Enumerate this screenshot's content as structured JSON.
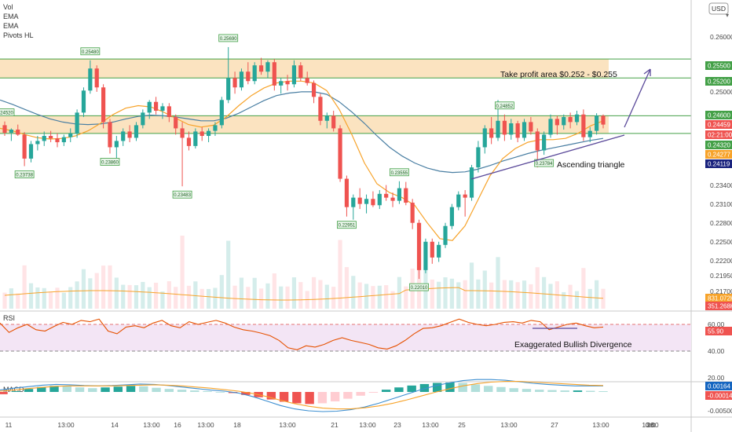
{
  "indicators_legend": [
    "Vol",
    "EMA",
    "EMA",
    "Pivots HL"
  ],
  "currency_button": "USD",
  "colors": {
    "up": "#26a69a",
    "down": "#ef5350",
    "ema_fast": "#f7a32a",
    "ema_slow": "#4a7fa3",
    "zone_fill": "#fbe3c0",
    "hline": "#43a047",
    "trend": "#5b4a9a",
    "rsi_line": "#e65100",
    "rsi_band": "#f3e5f5",
    "macd_line": "#3d8fd1",
    "signal_line": "#f7a32a"
  },
  "annotations": {
    "take_profit": "Take profit area $0.252 - $0.255",
    "triangle": "Ascending triangle",
    "divergence": "Exaggerated Bullish Divergence"
  },
  "price_axis": {
    "ticks": [
      "0.26000",
      "0.25000",
      "0.23400",
      "0.23100",
      "0.22800",
      "0.22500",
      "0.22200",
      "0.21950",
      "0.21700"
    ],
    "badges": [
      {
        "text": "0.25500",
        "kind": "green"
      },
      {
        "text": "0.25200",
        "kind": "green"
      },
      {
        "text": "0.24600",
        "kind": "green"
      },
      {
        "text": "0.24459",
        "kind": "red"
      },
      {
        "text": "02:21:00",
        "kind": "red"
      },
      {
        "text": "0.24320",
        "kind": "green"
      },
      {
        "text": "0.24277",
        "kind": "orange"
      },
      {
        "text": "0.24119",
        "kind": "blue"
      },
      {
        "text": "831.072K",
        "kind": "orange"
      },
      {
        "text": "351.268K",
        "kind": "red"
      }
    ]
  },
  "rsi_axis": {
    "label": "RSI",
    "ticks": [
      "60.00",
      "40.00",
      "20.00"
    ],
    "value": "55.90"
  },
  "macd_axis": {
    "label": "MACD",
    "ticks": [
      "-0.00500"
    ],
    "values": [
      "0.00164",
      "-0.00014"
    ]
  },
  "time_axis": [
    "11",
    "13:00",
    "14",
    "13:00",
    "16",
    "13:00",
    "18",
    "13:00",
    "21",
    "13:00",
    "23",
    "13:00",
    "25",
    "13:00",
    "27",
    "13:00",
    "28",
    "13:00",
    "Oct"
  ],
  "chart_data": {
    "type": "candlestick",
    "y_range": [
      0.2155,
      0.264
    ],
    "hlines": [
      0.255,
      0.252,
      0.246,
      0.2432
    ],
    "zones": [
      [
        0.252,
        0.255
      ],
      [
        0.2432,
        0.246
      ]
    ],
    "pivot_labels": [
      "0.24520",
      "0.23738",
      "0.25480",
      "0.23860",
      "0.23483",
      "0.25690",
      "0.22951",
      "0.23555",
      "0.22010",
      "0.24852",
      "0.23784"
    ],
    "candles": [
      [
        0.2445,
        0.2451,
        0.2428,
        0.2433
      ],
      [
        0.2433,
        0.244,
        0.242,
        0.2438
      ],
      [
        0.2438,
        0.2446,
        0.2428,
        0.243
      ],
      [
        0.243,
        0.2434,
        0.238,
        0.2392
      ],
      [
        0.2392,
        0.242,
        0.2386,
        0.2415
      ],
      [
        0.2415,
        0.2428,
        0.2405,
        0.242
      ],
      [
        0.242,
        0.2435,
        0.2412,
        0.2428
      ],
      [
        0.2428,
        0.2436,
        0.2418,
        0.2424
      ],
      [
        0.2424,
        0.2432,
        0.241,
        0.2418
      ],
      [
        0.2418,
        0.243,
        0.2412,
        0.2426
      ],
      [
        0.2426,
        0.244,
        0.2418,
        0.2432
      ],
      [
        0.2432,
        0.247,
        0.2425,
        0.2465
      ],
      [
        0.2465,
        0.2505,
        0.2458,
        0.25
      ],
      [
        0.25,
        0.2548,
        0.2495,
        0.2535
      ],
      [
        0.2535,
        0.254,
        0.2498,
        0.2505
      ],
      [
        0.2505,
        0.251,
        0.244,
        0.245
      ],
      [
        0.245,
        0.2455,
        0.24,
        0.241
      ],
      [
        0.241,
        0.2428,
        0.2386,
        0.242
      ],
      [
        0.242,
        0.244,
        0.2412,
        0.2435
      ],
      [
        0.2435,
        0.2445,
        0.2418,
        0.2425
      ],
      [
        0.2425,
        0.245,
        0.242,
        0.2445
      ],
      [
        0.2445,
        0.247,
        0.244,
        0.2465
      ],
      [
        0.2465,
        0.2485,
        0.2455,
        0.2482
      ],
      [
        0.2482,
        0.249,
        0.2462,
        0.2468
      ],
      [
        0.2468,
        0.248,
        0.2455,
        0.2475
      ],
      [
        0.2475,
        0.248,
        0.245,
        0.2458
      ],
      [
        0.2458,
        0.2462,
        0.243,
        0.244
      ],
      [
        0.244,
        0.245,
        0.2348,
        0.2425
      ],
      [
        0.2425,
        0.2435,
        0.2405,
        0.2412
      ],
      [
        0.2412,
        0.244,
        0.2408,
        0.2435
      ],
      [
        0.2435,
        0.2442,
        0.242,
        0.2428
      ],
      [
        0.2428,
        0.244,
        0.2418,
        0.2436
      ],
      [
        0.2436,
        0.245,
        0.2428,
        0.2445
      ],
      [
        0.2445,
        0.249,
        0.244,
        0.2485
      ],
      [
        0.2485,
        0.2569,
        0.248,
        0.252
      ],
      [
        0.252,
        0.253,
        0.2495,
        0.2505
      ],
      [
        0.2505,
        0.2535,
        0.25,
        0.253
      ],
      [
        0.253,
        0.2545,
        0.251,
        0.2515
      ],
      [
        0.2515,
        0.2545,
        0.251,
        0.254
      ],
      [
        0.254,
        0.2552,
        0.2525,
        0.253
      ],
      [
        0.253,
        0.2548,
        0.252,
        0.2545
      ],
      [
        0.2545,
        0.255,
        0.25,
        0.2508
      ],
      [
        0.2508,
        0.252,
        0.2495,
        0.2515
      ],
      [
        0.2515,
        0.2525,
        0.25,
        0.251
      ],
      [
        0.251,
        0.2548,
        0.2505,
        0.254
      ],
      [
        0.254,
        0.2545,
        0.2515,
        0.252
      ],
      [
        0.252,
        0.253,
        0.2508,
        0.2512
      ],
      [
        0.2512,
        0.2516,
        0.248,
        0.249
      ],
      [
        0.249,
        0.2495,
        0.2445,
        0.2452
      ],
      [
        0.2452,
        0.2465,
        0.244,
        0.246
      ],
      [
        0.246,
        0.2468,
        0.2435,
        0.244
      ],
      [
        0.244,
        0.2445,
        0.2355,
        0.236
      ],
      [
        0.236,
        0.2365,
        0.23,
        0.2315
      ],
      [
        0.2315,
        0.2335,
        0.2295,
        0.233
      ],
      [
        0.233,
        0.2345,
        0.2312,
        0.232
      ],
      [
        0.232,
        0.2335,
        0.2305,
        0.2328
      ],
      [
        0.2328,
        0.234,
        0.2315,
        0.2318
      ],
      [
        0.2318,
        0.2342,
        0.2312,
        0.2336
      ],
      [
        0.2336,
        0.235,
        0.2325,
        0.233
      ],
      [
        0.233,
        0.2338,
        0.2315,
        0.2325
      ],
      [
        0.2325,
        0.2356,
        0.232,
        0.2345
      ],
      [
        0.2345,
        0.2355,
        0.2318,
        0.2322
      ],
      [
        0.2322,
        0.2328,
        0.228,
        0.229
      ],
      [
        0.229,
        0.2295,
        0.2201,
        0.2215
      ],
      [
        0.2215,
        0.2265,
        0.221,
        0.226
      ],
      [
        0.226,
        0.2265,
        0.2225,
        0.2235
      ],
      [
        0.2235,
        0.226,
        0.2228,
        0.2255
      ],
      [
        0.2255,
        0.229,
        0.225,
        0.2285
      ],
      [
        0.2285,
        0.232,
        0.228,
        0.2315
      ],
      [
        0.2315,
        0.234,
        0.231,
        0.2335
      ],
      [
        0.2335,
        0.2342,
        0.23,
        0.233
      ],
      [
        0.233,
        0.2382,
        0.2325,
        0.2378
      ],
      [
        0.2378,
        0.242,
        0.237,
        0.241
      ],
      [
        0.241,
        0.2445,
        0.24,
        0.244
      ],
      [
        0.244,
        0.2458,
        0.2415,
        0.2425
      ],
      [
        0.2425,
        0.2485,
        0.242,
        0.2452
      ],
      [
        0.2452,
        0.2462,
        0.242,
        0.243
      ],
      [
        0.243,
        0.2455,
        0.2422,
        0.2448
      ],
      [
        0.2448,
        0.2452,
        0.2418,
        0.2425
      ],
      [
        0.2425,
        0.2455,
        0.242,
        0.245
      ],
      [
        0.245,
        0.2458,
        0.243,
        0.2435
      ],
      [
        0.2435,
        0.244,
        0.2378,
        0.2405
      ],
      [
        0.2405,
        0.2435,
        0.2398,
        0.243
      ],
      [
        0.243,
        0.2462,
        0.2425,
        0.2455
      ],
      [
        0.2455,
        0.246,
        0.243,
        0.2445
      ],
      [
        0.2445,
        0.2462,
        0.2438,
        0.2458
      ],
      [
        0.2458,
        0.2465,
        0.244,
        0.245
      ],
      [
        0.245,
        0.2468,
        0.2445,
        0.2462
      ],
      [
        0.2462,
        0.247,
        0.242,
        0.2426
      ],
      [
        0.2426,
        0.2442,
        0.2418,
        0.2436
      ],
      [
        0.2436,
        0.2464,
        0.243,
        0.246
      ],
      [
        0.246,
        0.2462,
        0.244,
        0.2446
      ]
    ],
    "ema_fast": [
      0.244,
      0.2436,
      0.243,
      0.2425,
      0.2423,
      0.2424,
      0.2428,
      0.2436,
      0.2448,
      0.2462,
      0.2472,
      0.2476,
      0.2474,
      0.2466,
      0.2456,
      0.2446,
      0.2442,
      0.2445,
      0.2458,
      0.2476,
      0.2492,
      0.2504,
      0.2512,
      0.2515,
      0.2515,
      0.2512,
      0.25,
      0.247,
      0.243,
      0.2385,
      0.2352,
      0.2338,
      0.233,
      0.2318,
      0.229,
      0.2265,
      0.2262,
      0.2285,
      0.2325,
      0.2365,
      0.2392,
      0.2408,
      0.2418,
      0.2422,
      0.2422,
      0.2424,
      0.2432,
      0.2444,
      0.2452
    ],
    "ema_slow": [
      0.2485,
      0.2478,
      0.247,
      0.2462,
      0.2455,
      0.245,
      0.2447,
      0.2446,
      0.2447,
      0.245,
      0.2455,
      0.2459,
      0.2461,
      0.246,
      0.2458,
      0.2455,
      0.2452,
      0.2452,
      0.2456,
      0.2464,
      0.2474,
      0.2484,
      0.2492,
      0.2496,
      0.2498,
      0.2498,
      0.2494,
      0.2482,
      0.2466,
      0.2448,
      0.2428,
      0.241,
      0.2396,
      0.2385,
      0.2377,
      0.2372,
      0.237,
      0.2371,
      0.2375,
      0.2381,
      0.2388,
      0.2394,
      0.24,
      0.2405,
      0.2409,
      0.2413,
      0.2417,
      0.2421,
      0.2424
    ],
    "trendlines": [
      [
        [
          0.2365,
          0.0
        ],
        [
          0.2412,
          1.0
        ]
      ]
    ],
    "projection": "up",
    "rsi": [
      62,
      48,
      55,
      60,
      52,
      50,
      57,
      63,
      60,
      66,
      64,
      68,
      50,
      46,
      56,
      58,
      55,
      62,
      66,
      58,
      55,
      64,
      60,
      63,
      66,
      62,
      56,
      52,
      50,
      47,
      43,
      36,
      25,
      22,
      28,
      26,
      30,
      36,
      40,
      36,
      33,
      30,
      25,
      23,
      28,
      36,
      46,
      54,
      55,
      58,
      63,
      68,
      63,
      60,
      58,
      60,
      63,
      64,
      62,
      66,
      64,
      52,
      56,
      60,
      62,
      58,
      55,
      56
    ],
    "rsi_levels": [
      70,
      30
    ],
    "macd_hist": [
      -0.0006,
      0.0002,
      0.0008,
      0.0013,
      0.0016,
      0.0015,
      0.0012,
      0.001,
      0.0012,
      0.0014,
      0.0016,
      0.0015,
      0.0011,
      0.0008,
      0.0006,
      0.0004,
      0.0002,
      0.0,
      -0.0003,
      -0.0008,
      -0.0014,
      -0.002,
      -0.0026,
      -0.003,
      -0.0032,
      -0.003,
      -0.0025,
      -0.0018,
      -0.001,
      -0.0002,
      0.0006,
      0.0012,
      0.0017,
      0.0021,
      0.0024,
      0.0025,
      0.0024,
      0.002,
      0.0016,
      0.0013,
      0.001,
      0.0008,
      0.0006,
      0.0005,
      0.0004,
      0.0004,
      0.0003,
      0.0002
    ],
    "macd_line": [
      0.0005,
      0.001,
      0.0014,
      0.0018,
      0.002,
      0.0019,
      0.0017,
      0.0016,
      0.0017,
      0.0019,
      0.0021,
      0.002,
      0.0017,
      0.0013,
      0.0009,
      0.0005,
      0.0002,
      -0.0003,
      -0.0012,
      -0.0024,
      -0.0036,
      -0.0045,
      -0.005,
      -0.0052,
      -0.0051,
      -0.0047,
      -0.004,
      -0.003,
      -0.0018,
      -0.0006,
      0.0006,
      0.0016,
      0.0024,
      0.003,
      0.0033,
      0.0033,
      0.0031,
      0.0027,
      0.0023,
      0.002,
      0.0018,
      0.0016,
      0.0016,
      0.0016
    ],
    "signal_line": [
      0.0002,
      0.0005,
      0.0009,
      0.0012,
      0.0015,
      0.0016,
      0.0016,
      0.0016,
      0.0016,
      0.0017,
      0.0018,
      0.0019,
      0.0018,
      0.0016,
      0.0013,
      0.001,
      0.0006,
      0.0002,
      -0.0004,
      -0.0012,
      -0.0022,
      -0.0031,
      -0.0038,
      -0.0043,
      -0.0045,
      -0.0045,
      -0.0042,
      -0.0037,
      -0.003,
      -0.0021,
      -0.0011,
      -0.0001,
      0.0008,
      0.0016,
      0.0022,
      0.0026,
      0.0028,
      0.0028,
      0.0026,
      0.0024,
      0.0022,
      0.002,
      0.0018,
      0.0017
    ]
  }
}
